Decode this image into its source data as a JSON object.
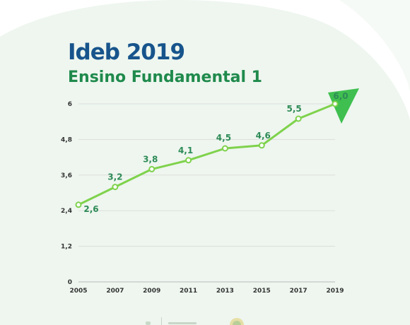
{
  "header": {
    "title": "Ideb 2019",
    "subtitle": "Ensino Fundamental 1"
  },
  "colors": {
    "background_shape": "#e8f3ea",
    "title": "#17548c",
    "subtitle": "#1f8a4c",
    "line": "#7fd24c",
    "data_label": "#2e8b57",
    "arrow": "#3fbf4f",
    "grid": "#dddddd"
  },
  "chart_data": {
    "type": "line",
    "title": "",
    "xlabel": "",
    "ylabel": "",
    "x": [
      "2005",
      "2007",
      "2009",
      "2011",
      "2013",
      "2015",
      "2017",
      "2019"
    ],
    "y_tick_labels": [
      "0",
      "1,2",
      "2,4",
      "3,6",
      "4,8",
      "6"
    ],
    "y_ticks": [
      0,
      1.2,
      2.4,
      3.6,
      4.8,
      6
    ],
    "ylim": [
      0,
      6
    ],
    "grid": true,
    "legend": "none",
    "series": [
      {
        "values": [
          2.6,
          3.2,
          3.8,
          4.1,
          4.5,
          4.6,
          5.5,
          6.0
        ],
        "labels": [
          "2,6",
          "3,2",
          "3,8",
          "4,1",
          "4,5",
          "4,6",
          "5,5",
          "6,0"
        ]
      }
    ],
    "annotations": [
      "arrow-up-right"
    ]
  }
}
